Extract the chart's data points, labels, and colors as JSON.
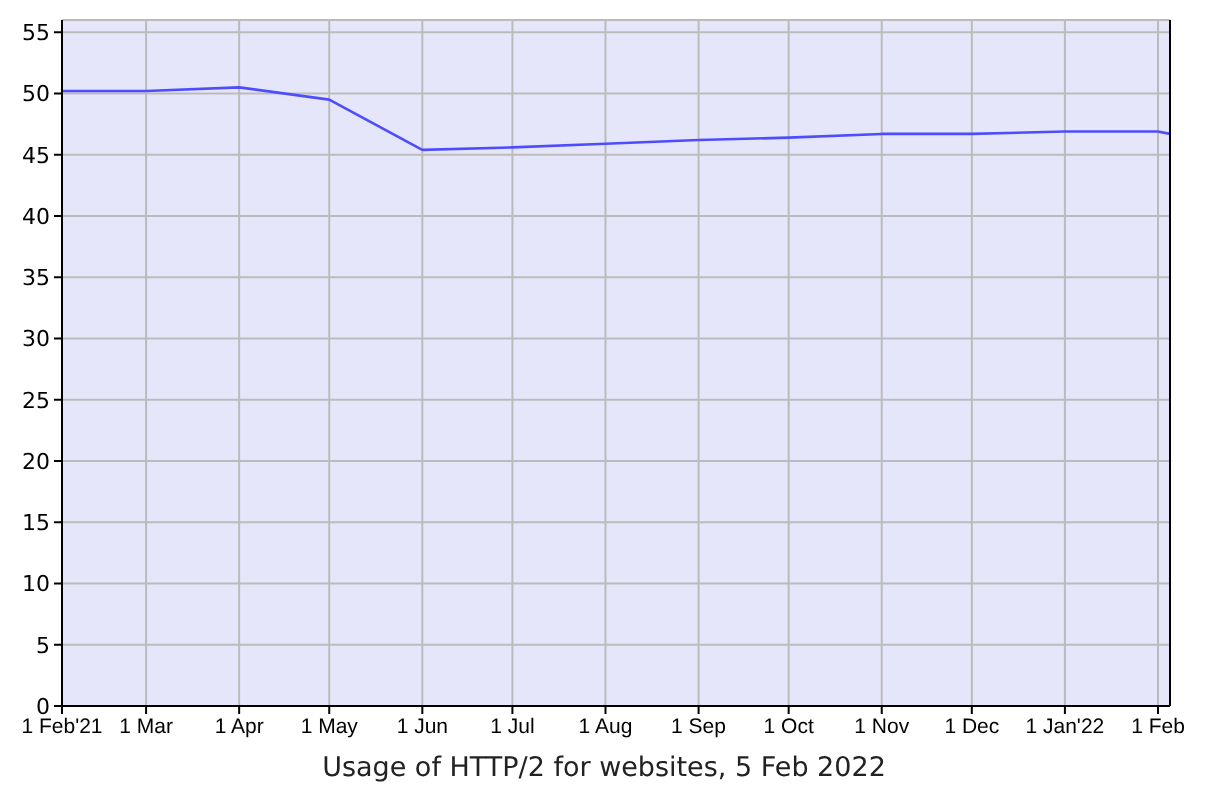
{
  "chart_data": {
    "type": "line",
    "title": "Usage of HTTP/2 for websites, 5 Feb 2022",
    "x": [
      "2021-02-01",
      "2021-03-01",
      "2021-04-01",
      "2021-05-01",
      "2021-06-01",
      "2021-07-01",
      "2021-08-01",
      "2021-09-01",
      "2021-10-01",
      "2021-11-01",
      "2021-12-01",
      "2022-01-01",
      "2022-02-01",
      "2022-02-05"
    ],
    "series": [
      {
        "color": "#4d4dff",
        "values": [
          50.2,
          50.2,
          50.5,
          49.5,
          45.4,
          45.6,
          45.9,
          46.2,
          46.4,
          46.7,
          46.7,
          46.9,
          46.9,
          46.7
        ]
      }
    ],
    "xlim": [
      "2021-02-01",
      "2022-02-05"
    ],
    "xticks": [
      {
        "value": "2021-02-01",
        "label": "1 Feb'21"
      },
      {
        "value": "2021-03-01",
        "label": "1 Mar"
      },
      {
        "value": "2021-04-01",
        "label": "1 Apr"
      },
      {
        "value": "2021-05-01",
        "label": "1 May"
      },
      {
        "value": "2021-06-01",
        "label": "1 Jun"
      },
      {
        "value": "2021-07-01",
        "label": "1 Jul"
      },
      {
        "value": "2021-08-01",
        "label": "1 Aug"
      },
      {
        "value": "2021-09-01",
        "label": "1 Sep"
      },
      {
        "value": "2021-10-01",
        "label": "1 Oct"
      },
      {
        "value": "2021-11-01",
        "label": "1 Nov"
      },
      {
        "value": "2021-12-01",
        "label": "1 Dec"
      },
      {
        "value": "2022-01-01",
        "label": "1 Jan'22"
      },
      {
        "value": "2022-02-01",
        "label": "1 Feb"
      }
    ],
    "ylim": [
      0,
      56
    ],
    "yticks": [
      0,
      5,
      10,
      15,
      20,
      25,
      30,
      35,
      40,
      45,
      50,
      55
    ],
    "grid": true,
    "marker": "none",
    "line_style": "solid"
  }
}
